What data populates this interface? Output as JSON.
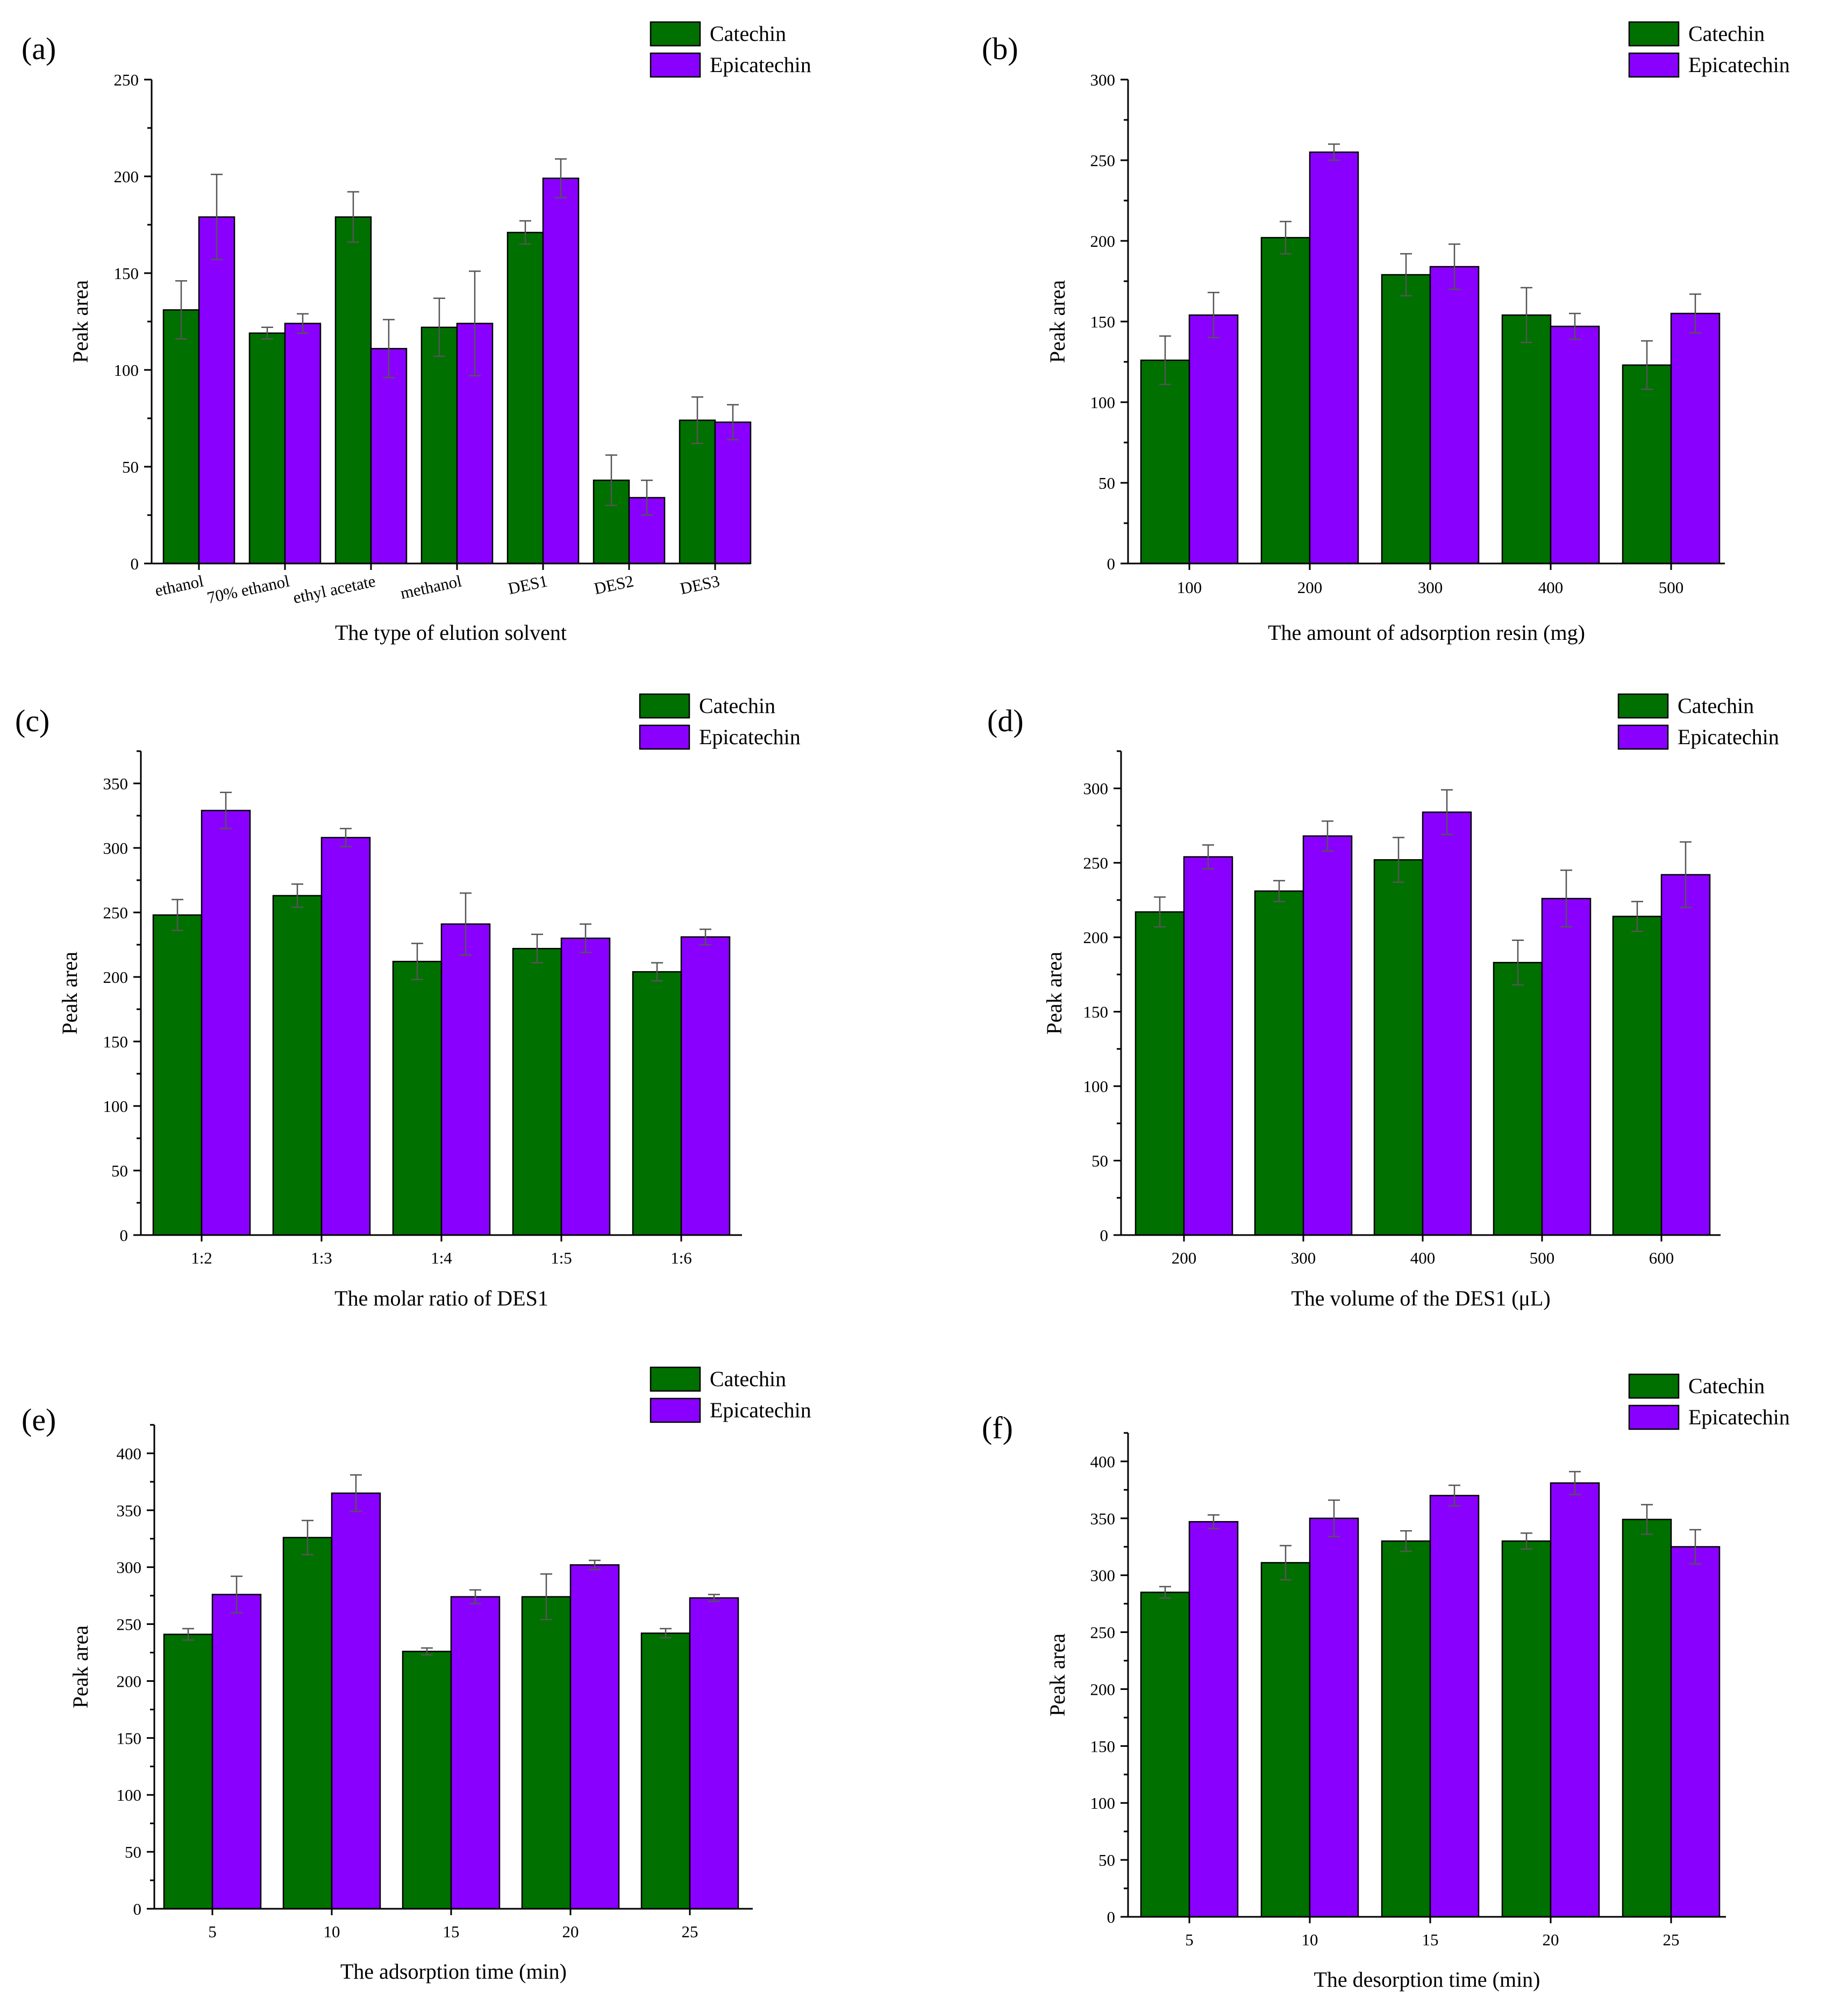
{
  "figure": {
    "series_colors": {
      "Catechin": "#007000",
      "Epicatechin": "#8a00ff"
    }
  },
  "chart_data": [
    {
      "type": "bar",
      "panel": "(a)",
      "xlabel": "The type of elution solvent",
      "ylabel": "Peak area",
      "ylim": [
        0,
        250
      ],
      "yticks": [
        0,
        50,
        100,
        150,
        200,
        250
      ],
      "categories": [
        "ethanol",
        "70% ethanol",
        "ethyl acetate",
        "methanol",
        "DES1",
        "DES2",
        "DES3"
      ],
      "rotated_labels": true,
      "legend": "top-right",
      "series": [
        {
          "name": "Catechin",
          "values": [
            131,
            119,
            179,
            122,
            171,
            43,
            74
          ],
          "errors": [
            15,
            3,
            13,
            15,
            6,
            13,
            12
          ]
        },
        {
          "name": "Epicatechin",
          "values": [
            179,
            124,
            111,
            124,
            199,
            34,
            73
          ],
          "errors": [
            22,
            5,
            15,
            27,
            10,
            9,
            9
          ]
        }
      ]
    },
    {
      "type": "bar",
      "panel": "(b)",
      "xlabel": "The amount of adsorption resin (mg)",
      "ylabel": "Peak area",
      "ylim": [
        0,
        300
      ],
      "yticks": [
        0,
        50,
        100,
        150,
        200,
        250,
        300
      ],
      "categories": [
        "100",
        "200",
        "300",
        "400",
        "500"
      ],
      "legend": "top-right",
      "series": [
        {
          "name": "Catechin",
          "values": [
            126,
            202,
            179,
            154,
            123
          ],
          "errors": [
            15,
            10,
            13,
            17,
            15
          ]
        },
        {
          "name": "Epicatechin",
          "values": [
            154,
            255,
            184,
            147,
            155
          ],
          "errors": [
            14,
            5,
            14,
            8,
            12
          ]
        }
      ]
    },
    {
      "type": "bar",
      "panel": "(c)",
      "xlabel": "The molar ratio of DES1",
      "ylabel": "Peak area",
      "ylim": [
        0,
        375
      ],
      "yticks": [
        0,
        50,
        100,
        150,
        200,
        250,
        300,
        350
      ],
      "categories": [
        "1:2",
        "1:3",
        "1:4",
        "1:5",
        "1:6"
      ],
      "legend": "top-right",
      "series": [
        {
          "name": "Catechin",
          "values": [
            248,
            263,
            212,
            222,
            204
          ],
          "errors": [
            12,
            9,
            14,
            11,
            7
          ]
        },
        {
          "name": "Epicatechin",
          "values": [
            329,
            308,
            241,
            230,
            231
          ],
          "errors": [
            14,
            7,
            24,
            11,
            6
          ]
        }
      ]
    },
    {
      "type": "bar",
      "panel": "(d)",
      "xlabel": "The volume of the DES1 (μL)",
      "ylabel": "Peak area",
      "ylim": [
        0,
        325
      ],
      "yticks": [
        0,
        50,
        100,
        150,
        200,
        250,
        300
      ],
      "categories": [
        "200",
        "300",
        "400",
        "500",
        "600"
      ],
      "legend": "top-right",
      "series": [
        {
          "name": "Catechin",
          "values": [
            217,
            231,
            252,
            183,
            214
          ],
          "errors": [
            10,
            7,
            15,
            15,
            10
          ]
        },
        {
          "name": "Epicatechin",
          "values": [
            254,
            268,
            284,
            226,
            242
          ],
          "errors": [
            8,
            10,
            15,
            19,
            22
          ]
        }
      ]
    },
    {
      "type": "bar",
      "panel": "(e)",
      "xlabel": "The adsorption time (min)",
      "ylabel": "Peak area",
      "ylim": [
        0,
        425
      ],
      "yticks": [
        0,
        50,
        100,
        150,
        200,
        250,
        300,
        350,
        400
      ],
      "categories": [
        "5",
        "10",
        "15",
        "20",
        "25"
      ],
      "legend": "top-right",
      "series": [
        {
          "name": "Catechin",
          "values": [
            241,
            326,
            226,
            274,
            242
          ],
          "errors": [
            5,
            15,
            3,
            20,
            4
          ]
        },
        {
          "name": "Epicatechin",
          "values": [
            276,
            365,
            274,
            302,
            273
          ],
          "errors": [
            16,
            16,
            6,
            4,
            3
          ]
        }
      ]
    },
    {
      "type": "bar",
      "panel": "(f)",
      "xlabel": "The desorption time (min)",
      "ylabel": "Peak area",
      "ylim": [
        0,
        425
      ],
      "yticks": [
        0,
        50,
        100,
        150,
        200,
        250,
        300,
        350,
        400
      ],
      "categories": [
        "5",
        "10",
        "15",
        "20",
        "25"
      ],
      "legend": "top-right",
      "series": [
        {
          "name": "Catechin",
          "values": [
            285,
            311,
            330,
            330,
            349
          ],
          "errors": [
            5,
            15,
            9,
            7,
            13
          ]
        },
        {
          "name": "Epicatechin",
          "values": [
            347,
            350,
            370,
            381,
            325
          ],
          "errors": [
            6,
            16,
            9,
            10,
            15
          ]
        }
      ]
    }
  ]
}
